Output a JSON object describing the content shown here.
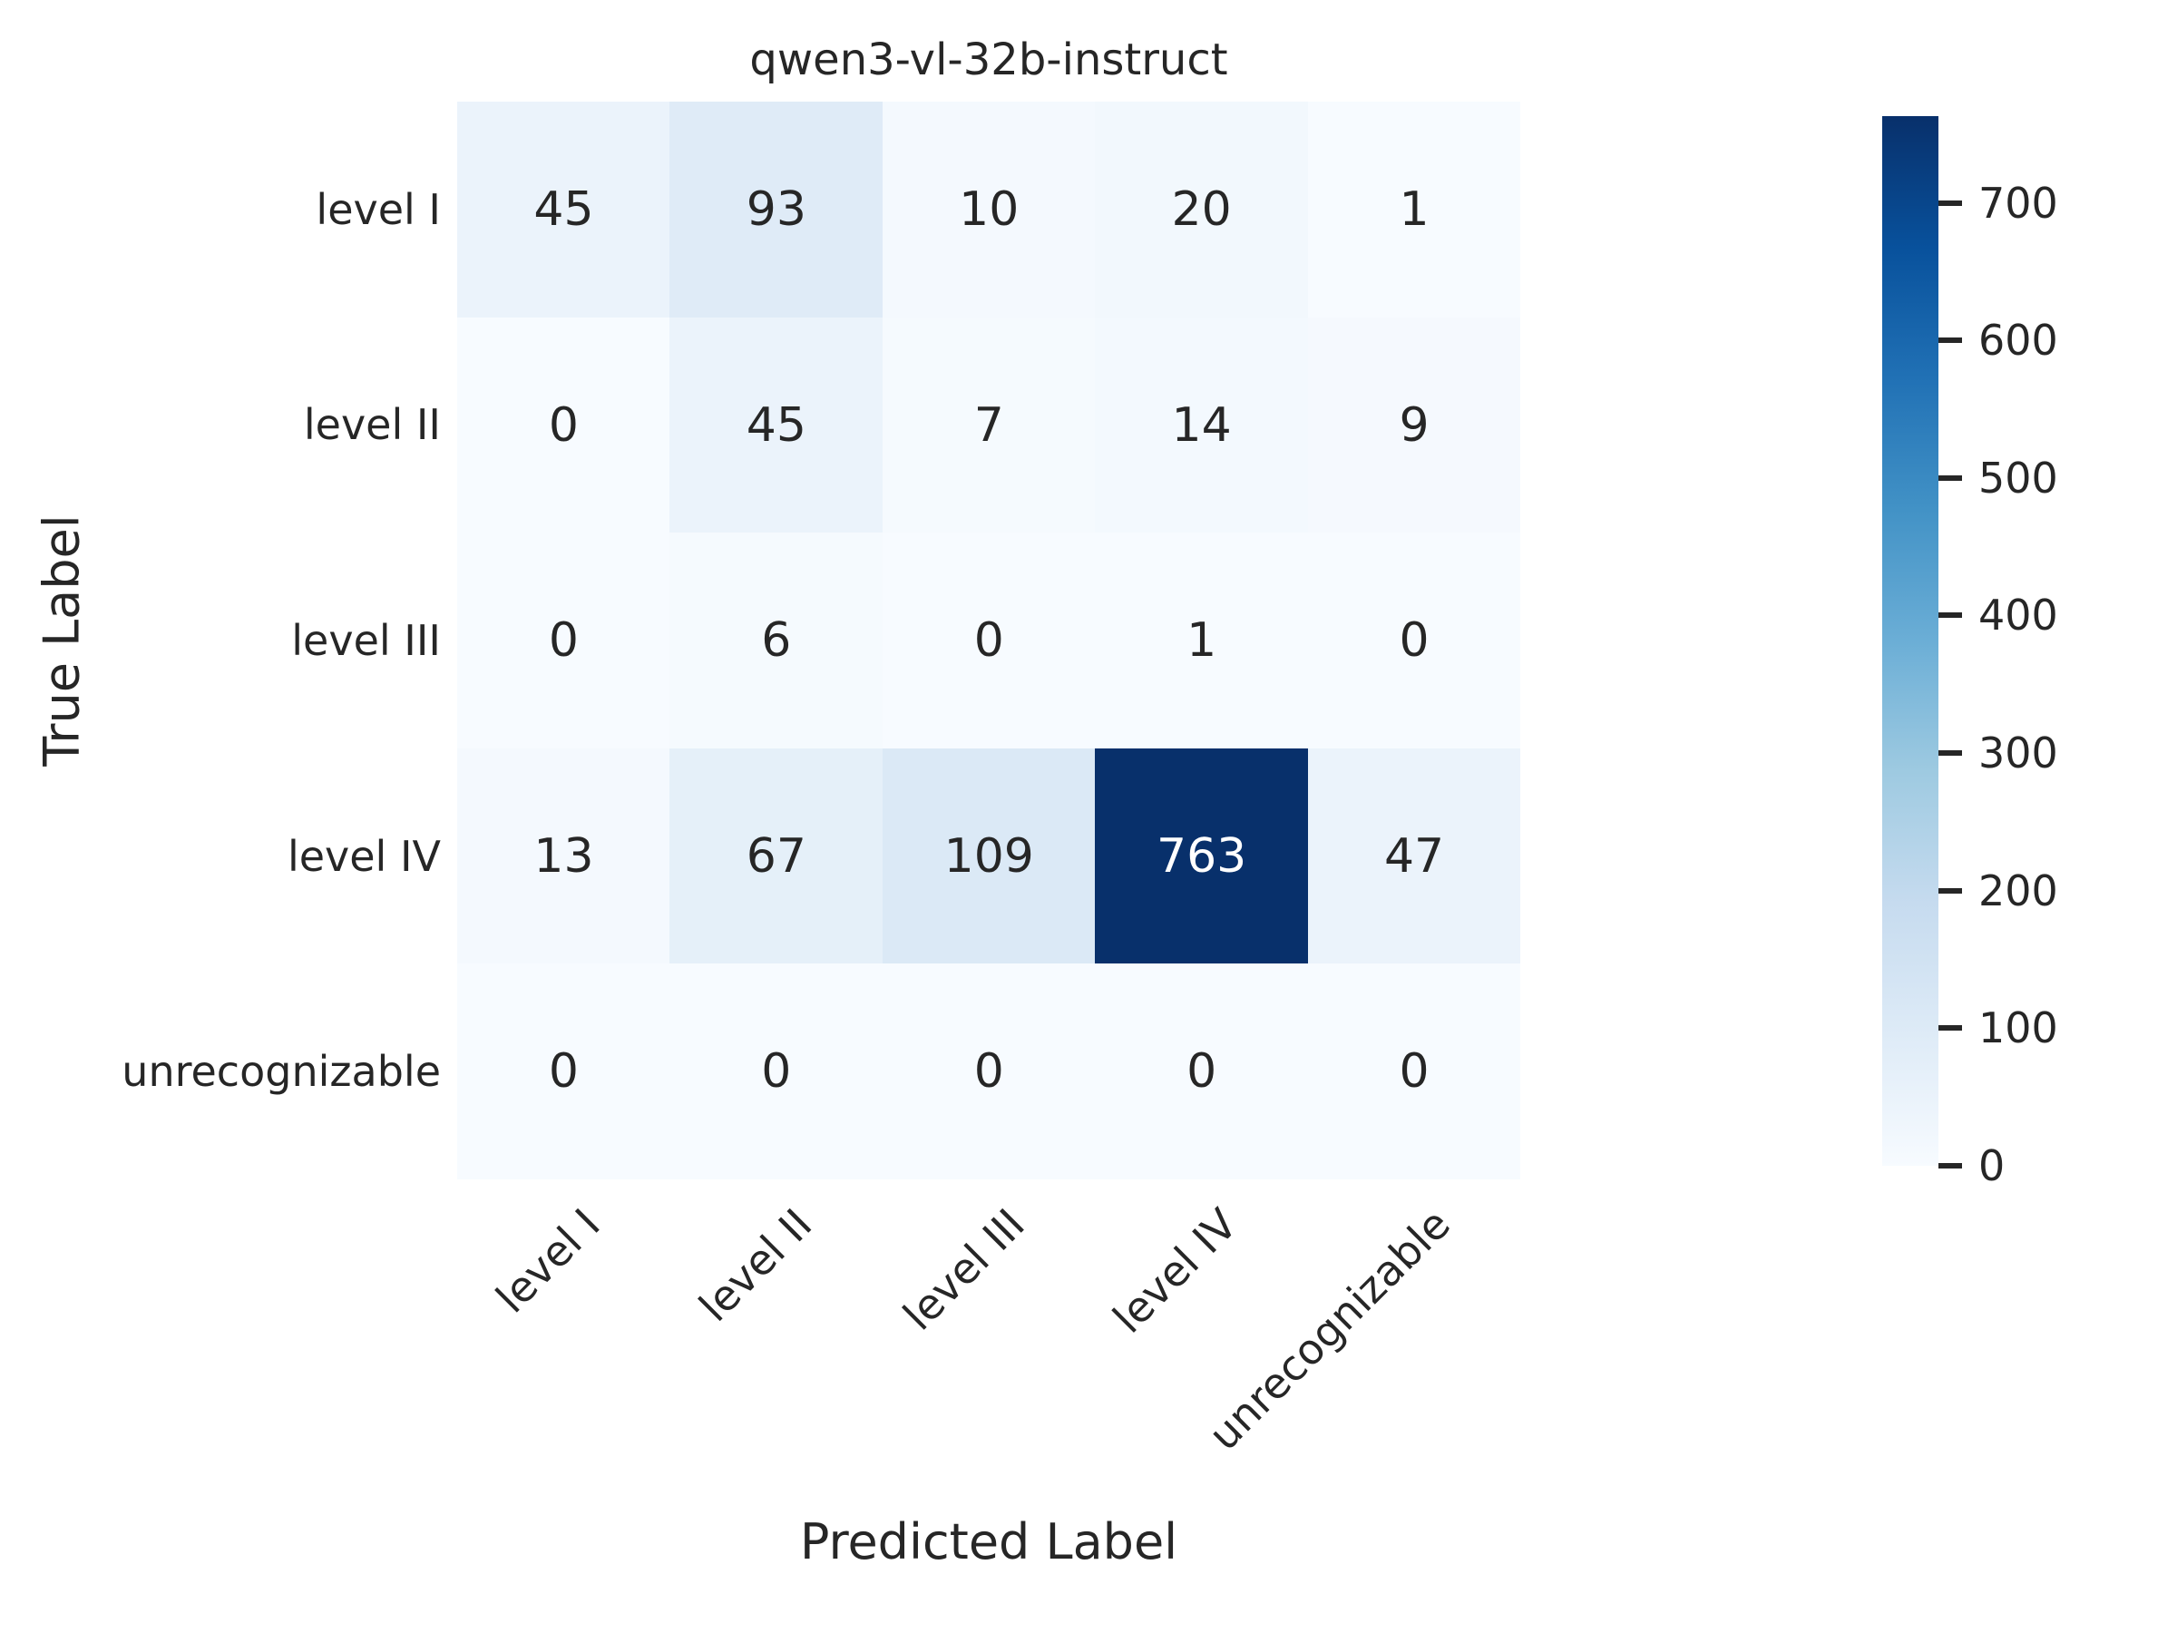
{
  "chart_data": {
    "type": "heatmap",
    "title": "qwen3-vl-32b-instruct",
    "xlabel": "Predicted Label",
    "ylabel": "True Label",
    "x_categories": [
      "level I",
      "level II",
      "level III",
      "level IV",
      "unrecognizable"
    ],
    "y_categories": [
      "level I",
      "level II",
      "level III",
      "level IV",
      "unrecognizable"
    ],
    "matrix": [
      [
        45,
        93,
        10,
        20,
        1
      ],
      [
        0,
        45,
        7,
        14,
        9
      ],
      [
        0,
        6,
        0,
        1,
        0
      ],
      [
        13,
        67,
        109,
        763,
        47
      ],
      [
        0,
        0,
        0,
        0,
        0
      ]
    ],
    "vmin": 0,
    "vmax": 763,
    "colormap": "Blues",
    "colorbar_ticks": [
      0,
      100,
      200,
      300,
      400,
      500,
      600,
      700
    ],
    "legend_position": "right",
    "grid": false,
    "colors": {
      "cell_max": "#08306b",
      "cell_min": "#f7fbff",
      "text_dark": "#262626",
      "text_light": "#ffffff",
      "background": "#ffffff"
    }
  }
}
